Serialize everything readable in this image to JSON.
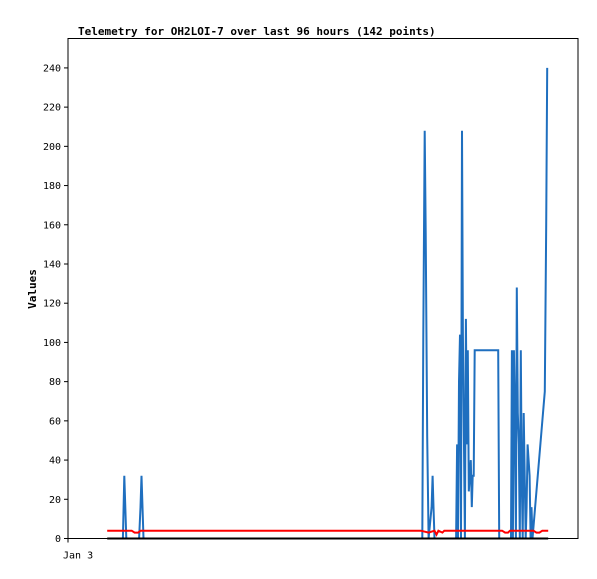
{
  "chart_data": {
    "type": "line",
    "title": "Telemetry for OH2LOI-7 over last 96 hours (142 points)",
    "xlabel": "",
    "ylabel": "Values",
    "xlim": [
      0,
      96
    ],
    "ylim": [
      0,
      255
    ],
    "y_ticks": [
      0,
      20,
      40,
      60,
      80,
      100,
      120,
      140,
      160,
      180,
      200,
      220,
      240
    ],
    "x_ticks": [
      {
        "x": 0,
        "label": "Jan 3"
      }
    ],
    "grid": false,
    "legend": "none",
    "series": [
      {
        "color": "#1f6fbf",
        "points": [
          [
            11.2,
            0
          ],
          [
            11.5,
            32
          ],
          [
            11.7,
            16
          ],
          [
            11.9,
            0
          ],
          [
            14.5,
            0
          ],
          [
            14.8,
            16
          ],
          [
            15.0,
            32
          ],
          [
            15.2,
            16
          ],
          [
            15.4,
            0
          ],
          [
            72.3,
            0
          ],
          [
            72.5,
            104
          ],
          [
            72.8,
            208
          ],
          [
            73.0,
            156
          ],
          [
            73.3,
            52
          ],
          [
            73.6,
            0
          ],
          [
            74.2,
            16
          ],
          [
            74.4,
            32
          ],
          [
            74.6,
            16
          ],
          [
            74.8,
            0
          ],
          [
            79.2,
            0
          ],
          [
            79.4,
            48
          ],
          [
            79.6,
            0
          ],
          [
            79.8,
            80
          ],
          [
            80.0,
            104
          ],
          [
            80.2,
            0
          ],
          [
            80.4,
            208
          ],
          [
            80.6,
            104
          ],
          [
            80.8,
            52
          ],
          [
            81.0,
            0
          ],
          [
            81.2,
            112
          ],
          [
            81.4,
            48
          ],
          [
            81.6,
            96
          ],
          [
            81.8,
            24
          ],
          [
            82.0,
            32
          ],
          [
            82.2,
            40
          ],
          [
            82.4,
            16
          ],
          [
            82.6,
            32
          ],
          [
            82.8,
            32
          ],
          [
            83.0,
            96
          ],
          [
            86.0,
            96
          ],
          [
            87.8,
            96
          ],
          [
            88.0,
            0
          ],
          [
            90.4,
            0
          ],
          [
            90.6,
            96
          ],
          [
            90.8,
            0
          ],
          [
            91.0,
            96
          ],
          [
            91.2,
            64
          ],
          [
            91.4,
            0
          ],
          [
            91.6,
            128
          ],
          [
            91.8,
            64
          ],
          [
            92.0,
            48
          ],
          [
            92.2,
            0
          ],
          [
            92.4,
            96
          ],
          [
            92.6,
            32
          ],
          [
            92.8,
            0
          ],
          [
            93.0,
            64
          ],
          [
            93.2,
            32
          ],
          [
            93.4,
            0
          ],
          [
            93.6,
            16
          ],
          [
            93.8,
            48
          ],
          [
            94.0,
            40
          ],
          [
            94.2,
            32
          ],
          [
            94.4,
            0
          ],
          [
            94.6,
            16
          ],
          [
            94.8,
            0
          ],
          [
            97.3,
            75
          ],
          [
            97.6,
            160
          ],
          [
            97.8,
            240
          ]
        ]
      },
      {
        "color": "#ff0000",
        "points": [
          [
            8.0,
            4
          ],
          [
            13.0,
            4
          ],
          [
            13.6,
            3
          ],
          [
            14.3,
            3
          ],
          [
            14.8,
            4
          ],
          [
            72.0,
            4
          ],
          [
            73.6,
            3
          ],
          [
            74.8,
            4
          ],
          [
            75.2,
            2
          ],
          [
            75.6,
            4
          ],
          [
            76.4,
            3
          ],
          [
            76.8,
            4
          ],
          [
            88.6,
            4
          ],
          [
            89.2,
            3
          ],
          [
            89.8,
            3
          ],
          [
            90.2,
            4
          ],
          [
            95.0,
            4
          ],
          [
            95.6,
            3
          ],
          [
            96.2,
            3
          ],
          [
            96.8,
            4
          ],
          [
            98.0,
            4
          ]
        ]
      },
      {
        "color": "#000000",
        "points": [
          [
            8.0,
            0
          ],
          [
            98.0,
            0
          ]
        ]
      }
    ]
  }
}
